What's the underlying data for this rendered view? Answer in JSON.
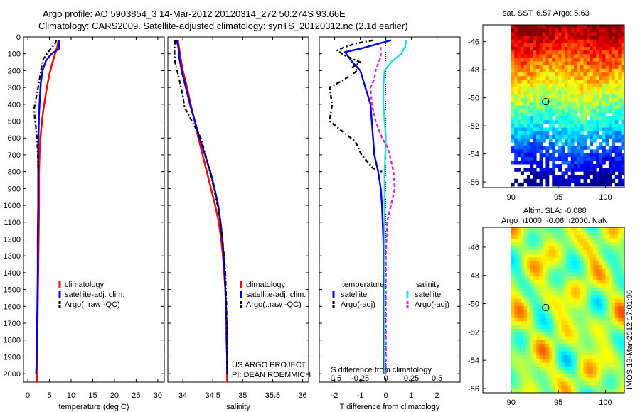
{
  "header": {
    "line1": "Argo profile: AO 5903854_3 14-Mar-2012 20120314_272 50.274S 93.66E",
    "line2": "Climatology: CARS2009. Satellite-adjusted climatology: synTS_20120312.nc (2.1d earlier)"
  },
  "stamp": "IMOS 18-Mar-2012 17:01:06",
  "colors": {
    "climatology": "#ff0000",
    "satellite": "#0000dd",
    "argo": "#000000",
    "satellite_diff_salinity": "#22dddd",
    "argo_diff_salinity": "#dd22dd"
  },
  "chart_data": [
    {
      "id": "temperature",
      "type": "line",
      "xlabel": "temperature (deg C)",
      "ylabel": "",
      "xlim": [
        -1,
        31.5
      ],
      "ylim": [
        2050,
        0
      ],
      "xticks": [
        0,
        5,
        10,
        15,
        20,
        25,
        30
      ],
      "xtick_labels": [
        "0",
        "5",
        "10",
        "15",
        "20",
        "25",
        "30"
      ],
      "yticks": [
        0,
        100,
        200,
        300,
        400,
        500,
        600,
        700,
        800,
        900,
        1000,
        1100,
        1200,
        1300,
        1400,
        1500,
        1600,
        1700,
        1800,
        1900,
        2000
      ],
      "ytick_labels": [
        "0",
        "100",
        "200",
        "300",
        "400",
        "500",
        "600",
        "700",
        "800",
        "900",
        "1000",
        "1100",
        "1200",
        "1300",
        "1400",
        "1500",
        "1600",
        "1700",
        "1800",
        "1900",
        "2000"
      ],
      "legend": [
        "climatology",
        "satellite-adj. clim.",
        "Argo(..raw -QC)"
      ],
      "series": [
        {
          "name": "climatology",
          "style": "solid",
          "color": "#ff0000",
          "points": [
            [
              7.1,
              20
            ],
            [
              6.8,
              60
            ],
            [
              6.3,
              100
            ],
            [
              5.6,
              160
            ],
            [
              5.0,
              220
            ],
            [
              4.4,
              300
            ],
            [
              3.9,
              380
            ],
            [
              3.5,
              450
            ],
            [
              3.2,
              520
            ],
            [
              2.9,
              600
            ],
            [
              2.7,
              700
            ],
            [
              2.6,
              800
            ],
            [
              2.6,
              1000
            ],
            [
              2.5,
              1200
            ],
            [
              2.4,
              1400
            ],
            [
              2.3,
              1600
            ],
            [
              2.2,
              1800
            ],
            [
              2.2,
              2000
            ],
            [
              2.1,
              2050
            ]
          ]
        },
        {
          "name": "satellite-adj. clim.",
          "style": "solid",
          "color": "#0000dd",
          "points": [
            [
              7.3,
              20
            ],
            [
              7.2,
              70
            ],
            [
              5.5,
              100
            ],
            [
              4.2,
              140
            ],
            [
              3.4,
              200
            ],
            [
              3.0,
              270
            ],
            [
              2.8,
              350
            ],
            [
              2.6,
              450
            ],
            [
              2.5,
              550
            ],
            [
              2.4,
              650
            ],
            [
              2.4,
              800
            ],
            [
              2.4,
              1000
            ],
            [
              2.3,
              1200
            ],
            [
              2.3,
              1400
            ],
            [
              2.2,
              1600
            ],
            [
              2.1,
              1800
            ],
            [
              2.0,
              1950
            ],
            [
              1.9,
              2000
            ]
          ]
        },
        {
          "name": "Argo(..raw -QC)",
          "style": "dashdot",
          "color": "#000000",
          "points": [
            [
              6.6,
              20
            ],
            [
              6.3,
              40
            ],
            [
              5.0,
              80
            ],
            [
              3.6,
              130
            ],
            [
              3.0,
              200
            ],
            [
              2.6,
              270
            ],
            [
              2.0,
              350
            ],
            [
              1.5,
              420
            ],
            [
              1.6,
              480
            ],
            [
              1.8,
              520
            ],
            [
              2.1,
              600
            ],
            [
              2.3,
              700
            ],
            [
              2.4,
              800
            ]
          ]
        }
      ]
    },
    {
      "id": "salinity",
      "type": "line",
      "xlabel": "salinity",
      "ylabel": "",
      "xlim": [
        33.75,
        36.1
      ],
      "ylim": [
        2050,
        0
      ],
      "xticks": [
        34,
        34.5,
        35,
        35.5,
        36
      ],
      "xtick_labels": [
        "34",
        "34.5",
        "35",
        "35.5",
        "36"
      ],
      "legend": [
        "climatology",
        "satellite-adj. clim.",
        "Argo(..raw -QC)"
      ],
      "annotation": [
        "US ARGO PROJECT",
        "PI: DEAN ROEMMICH"
      ],
      "series": [
        {
          "name": "climatology",
          "style": "solid",
          "color": "#ff0000",
          "points": [
            [
              33.92,
              20
            ],
            [
              33.95,
              100
            ],
            [
              34.0,
              200
            ],
            [
              34.07,
              300
            ],
            [
              34.13,
              400
            ],
            [
              34.2,
              500
            ],
            [
              34.26,
              600
            ],
            [
              34.33,
              700
            ],
            [
              34.4,
              800
            ],
            [
              34.47,
              900
            ],
            [
              34.54,
              1000
            ],
            [
              34.6,
              1100
            ],
            [
              34.64,
              1200
            ],
            [
              34.67,
              1300
            ],
            [
              34.69,
              1400
            ],
            [
              34.71,
              1500
            ],
            [
              34.72,
              1600
            ],
            [
              34.73,
              1700
            ],
            [
              34.73,
              1800
            ],
            [
              34.74,
              1900
            ],
            [
              34.74,
              2050
            ]
          ]
        },
        {
          "name": "satellite-adj. clim.",
          "style": "solid",
          "color": "#0000dd",
          "points": [
            [
              33.9,
              20
            ],
            [
              33.93,
              70
            ],
            [
              33.94,
              120
            ],
            [
              33.98,
              200
            ],
            [
              34.05,
              300
            ],
            [
              34.12,
              400
            ],
            [
              34.2,
              500
            ],
            [
              34.28,
              600
            ],
            [
              34.37,
              700
            ],
            [
              34.46,
              800
            ],
            [
              34.53,
              900
            ],
            [
              34.59,
              1000
            ],
            [
              34.63,
              1100
            ],
            [
              34.66,
              1200
            ],
            [
              34.68,
              1300
            ],
            [
              34.7,
              1400
            ],
            [
              34.71,
              1500
            ],
            [
              34.72,
              1600
            ],
            [
              34.73,
              1700
            ],
            [
              34.73,
              1800
            ],
            [
              34.74,
              1900
            ],
            [
              34.74,
              2000
            ]
          ]
        },
        {
          "name": "Argo(..raw -QC)",
          "style": "dashdot",
          "color": "#000000",
          "points": [
            [
              33.87,
              20
            ],
            [
              33.86,
              80
            ],
            [
              33.87,
              150
            ],
            [
              33.94,
              250
            ],
            [
              34.0,
              350
            ],
            [
              34.03,
              420
            ],
            [
              34.08,
              450
            ],
            [
              34.15,
              500
            ],
            [
              34.23,
              550
            ],
            [
              34.3,
              600
            ],
            [
              34.38,
              700
            ],
            [
              34.45,
              800
            ],
            [
              34.52,
              900
            ],
            [
              34.58,
              1000
            ],
            [
              34.63,
              1100
            ],
            [
              34.66,
              1200
            ],
            [
              34.69,
              1300
            ],
            [
              34.71,
              1400
            ],
            [
              34.72,
              1500
            ],
            [
              34.73,
              1600
            ],
            [
              34.73,
              1700
            ],
            [
              34.74,
              1800
            ],
            [
              34.74,
              1900
            ],
            [
              34.74,
              2000
            ]
          ]
        }
      ]
    },
    {
      "id": "difference",
      "type": "line",
      "xlabel": "T difference from climatology",
      "xlabel2": "S difference from climatology",
      "xlim": [
        -2.6,
        2.9
      ],
      "ylim": [
        2050,
        0
      ],
      "xticks": [
        -2,
        -1,
        0,
        1,
        2
      ],
      "xtick_labels": [
        "-2",
        "-1",
        "0",
        "1",
        "2"
      ],
      "sticks": [
        -0.5,
        -0.25,
        0,
        0.25,
        0.5
      ],
      "stick_labels": [
        "-0.5",
        "-0.25",
        "0",
        "0.25",
        "0.5"
      ],
      "legend_groups": [
        {
          "title": "temperature",
          "items": [
            "satellite",
            "Argo(-adj)"
          ]
        },
        {
          "title": "salinity",
          "items": [
            "satellite",
            "Argo(-adj)"
          ]
        }
      ],
      "series": [
        {
          "name": "temperature satellite",
          "style": "solid",
          "color": "#0000dd",
          "points": [
            [
              0.2,
              20
            ],
            [
              -1.0,
              70
            ],
            [
              -1.6,
              90
            ],
            [
              -1.3,
              150
            ],
            [
              -1.0,
              200
            ],
            [
              -0.8,
              300
            ],
            [
              -0.6,
              400
            ],
            [
              -0.55,
              500
            ],
            [
              -0.5,
              600
            ],
            [
              -0.45,
              700
            ],
            [
              -0.3,
              800
            ],
            [
              -0.2,
              900
            ],
            [
              -0.15,
              1000
            ],
            [
              -0.1,
              1200
            ],
            [
              -0.08,
              1400
            ],
            [
              -0.08,
              1600
            ],
            [
              -0.07,
              1800
            ],
            [
              -0.07,
              2000
            ]
          ]
        },
        {
          "name": "temperature Argo(-adj)",
          "style": "dashdot",
          "color": "#000000",
          "points": [
            [
              -0.5,
              20
            ],
            [
              -1.2,
              40
            ],
            [
              -1.6,
              60
            ],
            [
              -1.9,
              80
            ],
            [
              -1.6,
              110
            ],
            [
              -1.0,
              150
            ],
            [
              -1.3,
              180
            ],
            [
              -1.1,
              200
            ],
            [
              -1.7,
              260
            ],
            [
              -2.2,
              300
            ],
            [
              -2.1,
              400
            ],
            [
              -2.2,
              500
            ],
            [
              -1.7,
              560
            ],
            [
              -1.2,
              620
            ],
            [
              -0.95,
              700
            ],
            [
              -0.5,
              780
            ],
            [
              -0.15,
              800
            ]
          ]
        },
        {
          "name": "salinity satellite",
          "style": "solid",
          "color": "#22dddd",
          "points": [
            [
              0.8,
              20
            ],
            [
              0.75,
              60
            ],
            [
              0.6,
              100
            ],
            [
              0.2,
              150
            ],
            [
              -0.05,
              200
            ],
            [
              -0.1,
              300
            ],
            [
              -0.1,
              400
            ],
            [
              -0.05,
              500
            ],
            [
              0.0,
              600
            ],
            [
              -0.02,
              700
            ],
            [
              -0.05,
              800
            ],
            [
              -0.05,
              1000
            ],
            [
              -0.05,
              1200
            ],
            [
              -0.05,
              1400
            ],
            [
              -0.05,
              1600
            ],
            [
              -0.05,
              1800
            ],
            [
              -0.05,
              2000
            ]
          ]
        },
        {
          "name": "salinity Argo(-adj)",
          "style": "dash",
          "color": "#dd22dd",
          "points": [
            [
              -0.2,
              60
            ],
            [
              -0.2,
              120
            ],
            [
              -0.4,
              200
            ],
            [
              -0.45,
              250
            ],
            [
              -0.6,
              300
            ],
            [
              -0.55,
              400
            ],
            [
              -0.4,
              500
            ],
            [
              -0.15,
              600
            ],
            [
              0.05,
              650
            ],
            [
              0.15,
              700
            ],
            [
              0.3,
              800
            ],
            [
              0.35,
              900
            ],
            [
              0.2,
              1000
            ],
            [
              0.05,
              1100
            ],
            [
              0.0,
              1300
            ],
            [
              0.0,
              1500
            ],
            [
              0.0,
              1700
            ],
            [
              0.0,
              1900
            ],
            [
              0.0,
              2000
            ]
          ]
        }
      ]
    },
    {
      "id": "sst_map",
      "type": "heatmap",
      "title": "sat. SST: 6.57 Argo: 5.63",
      "xlim": [
        87,
        102
      ],
      "ylim": [
        -56.4,
        -44.8
      ],
      "xticks": [
        90,
        95,
        100
      ],
      "xtick_labels": [
        "90",
        "95",
        "100"
      ],
      "yticks": [
        -46,
        -48,
        -50,
        -52,
        -54,
        -56
      ],
      "ytick_labels": [
        "-46",
        "-48",
        "-50",
        "-52",
        "-54",
        "-56"
      ],
      "data_extent": [
        90,
        102,
        -56.3,
        -44.8
      ],
      "marker": [
        93.66,
        -50.274
      ]
    },
    {
      "id": "sla_map",
      "type": "heatmap",
      "title": "Altim. SLA: -0.088",
      "subtitle": "Argo h1000: -0.06 h2000: NaN",
      "xlim": [
        87,
        102
      ],
      "ylim": [
        -56.3,
        -44.6
      ],
      "xticks": [
        90,
        95,
        100
      ],
      "xtick_labels": [
        "90",
        "95",
        "100"
      ],
      "yticks": [
        -46,
        -48,
        -50,
        -52,
        -54,
        -56
      ],
      "ytick_labels": [
        "-46",
        "-48",
        "-50",
        "-52",
        "-54",
        "-56"
      ],
      "data_extent": [
        90,
        102,
        -56.3,
        -44.6
      ],
      "marker": [
        93.66,
        -50.274
      ]
    }
  ]
}
